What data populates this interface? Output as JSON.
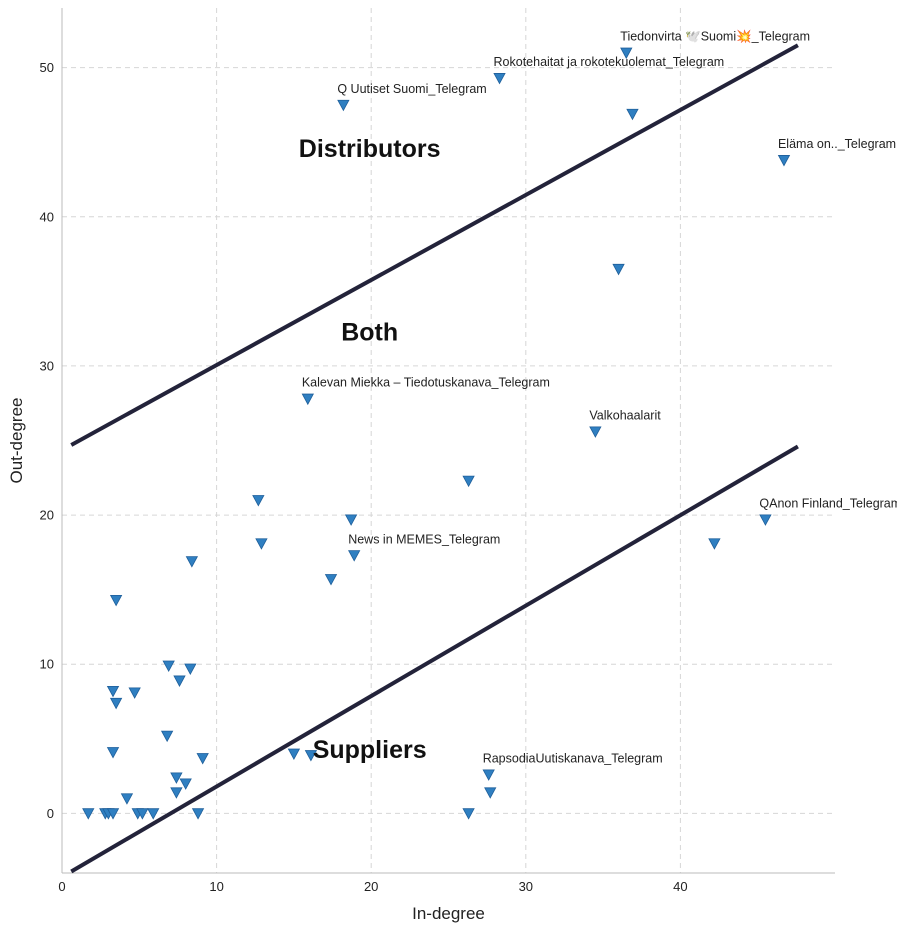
{
  "chart_data": {
    "type": "scatter",
    "xlabel": "In-degree",
    "ylabel": "Out-degree",
    "xlim": [
      0,
      50
    ],
    "ylim": [
      -4,
      54
    ],
    "xticks": [
      0,
      10,
      20,
      30,
      40
    ],
    "yticks": [
      0,
      10,
      20,
      30,
      40,
      50
    ],
    "grid": true,
    "marker": "triangle-down",
    "marker_color": "#2f7fc1",
    "line_color": "#23233a",
    "reference_lines": [
      {
        "x": [
          0.6,
          47.6
        ],
        "y": [
          24.7,
          51.5
        ]
      },
      {
        "x": [
          0.6,
          47.6
        ],
        "y": [
          -3.9,
          24.6
        ]
      }
    ],
    "regions": [
      {
        "label": "Distributors",
        "x": 19.9,
        "y": 44.6
      },
      {
        "label": "Both",
        "x": 19.9,
        "y": 32.3
      },
      {
        "label": "Suppliers",
        "x": 19.9,
        "y": 4.3
      }
    ],
    "points": [
      {
        "x": 36.5,
        "y": 51.0,
        "label": "Tiedonvirta 🕊️Suomi💥_Telegram"
      },
      {
        "x": 28.3,
        "y": 49.3,
        "label": "Rokotehaitat ja rokotekuolemat_Telegram"
      },
      {
        "x": 18.2,
        "y": 47.5,
        "label": "Q Uutiset Suomi_Telegram"
      },
      {
        "x": 36.9,
        "y": 46.9
      },
      {
        "x": 46.7,
        "y": 43.8,
        "label": "Eläma on.._Telegram"
      },
      {
        "x": 36.0,
        "y": 36.5
      },
      {
        "x": 15.9,
        "y": 27.8,
        "label": "Kalevan Miekka – Tiedotuskanava_Telegram"
      },
      {
        "x": 34.5,
        "y": 25.6,
        "label": "Valkohaalarit"
      },
      {
        "x": 26.3,
        "y": 22.3
      },
      {
        "x": 45.5,
        "y": 19.7,
        "label": "QAnon Finland_Telegram"
      },
      {
        "x": 12.7,
        "y": 21.0
      },
      {
        "x": 12.9,
        "y": 18.1
      },
      {
        "x": 18.7,
        "y": 19.7
      },
      {
        "x": 42.2,
        "y": 18.1
      },
      {
        "x": 18.9,
        "y": 17.3,
        "label": "News in MEMES_Telegram"
      },
      {
        "x": 8.4,
        "y": 16.9
      },
      {
        "x": 17.4,
        "y": 15.7
      },
      {
        "x": 3.5,
        "y": 14.3
      },
      {
        "x": 6.9,
        "y": 9.9
      },
      {
        "x": 8.3,
        "y": 9.7
      },
      {
        "x": 7.6,
        "y": 8.9
      },
      {
        "x": 3.3,
        "y": 8.2
      },
      {
        "x": 4.7,
        "y": 8.1
      },
      {
        "x": 3.5,
        "y": 7.4
      },
      {
        "x": 6.8,
        "y": 5.2
      },
      {
        "x": 3.3,
        "y": 4.1
      },
      {
        "x": 9.1,
        "y": 3.7
      },
      {
        "x": 15.0,
        "y": 4.0
      },
      {
        "x": 16.1,
        "y": 3.9
      },
      {
        "x": 27.6,
        "y": 2.6,
        "label": "RapsodiaUutiskanava_Telegram"
      },
      {
        "x": 7.4,
        "y": 2.4
      },
      {
        "x": 8.0,
        "y": 2.0
      },
      {
        "x": 7.4,
        "y": 1.4
      },
      {
        "x": 27.7,
        "y": 1.4
      },
      {
        "x": 4.2,
        "y": 1.0
      },
      {
        "x": 1.7,
        "y": 0.0
      },
      {
        "x": 2.8,
        "y": 0.0
      },
      {
        "x": 3.0,
        "y": 0.0
      },
      {
        "x": 3.3,
        "y": 0.0
      },
      {
        "x": 4.9,
        "y": 0.0
      },
      {
        "x": 5.2,
        "y": 0.0
      },
      {
        "x": 5.9,
        "y": 0.0
      },
      {
        "x": 8.8,
        "y": 0.0
      },
      {
        "x": 26.3,
        "y": 0.0
      }
    ]
  }
}
